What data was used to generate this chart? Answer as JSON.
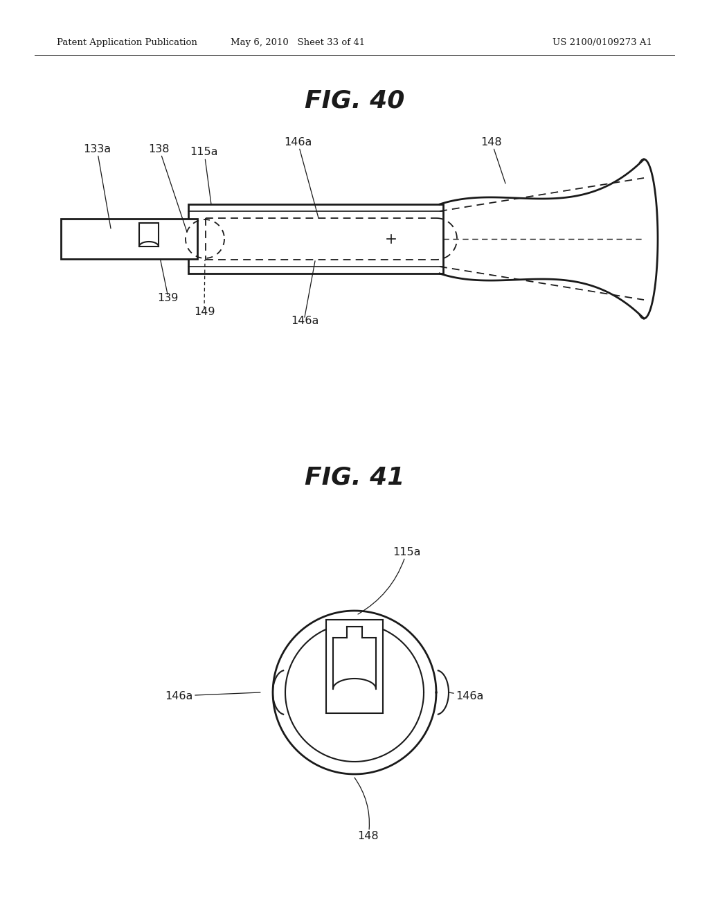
{
  "header_left": "Patent Application Publication",
  "header_mid": "May 6, 2010   Sheet 33 of 41",
  "header_right": "US 2100/0109273 A1",
  "fig40_title": "FIG. 40",
  "fig41_title": "FIG. 41",
  "background_color": "#ffffff",
  "line_color": "#1a1a1a"
}
